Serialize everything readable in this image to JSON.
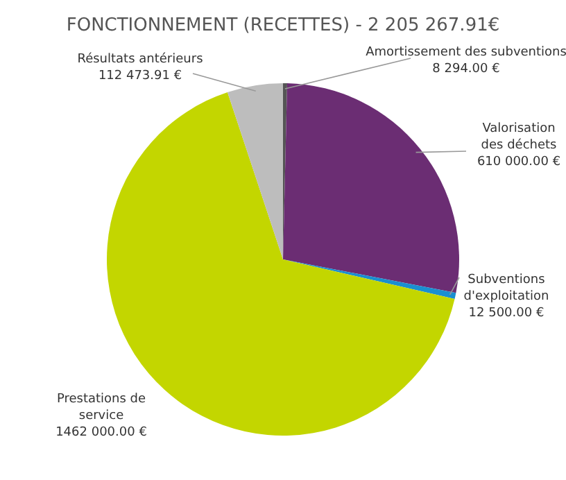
{
  "chart_data": {
    "type": "pie",
    "title": "FONCTIONNEMENT (RECETTES) - 2 205 267.91€",
    "categories": [
      "Amortissement des subventions",
      "Valorisation\ndes déchets",
      "Subventions\nd'exploitation",
      "Prestations de\nservice",
      "Résultats antérieurs"
    ],
    "values": [
      8294,
      610000,
      12500,
      1462000,
      112473.91
    ],
    "value_labels": [
      "8 294.00 €",
      "610 000.00 €",
      "12 500.00 €",
      "1462 000.00 €",
      "112 473.91 €"
    ],
    "colors": [
      "#555555",
      "#6b2d73",
      "#1a8fd0",
      "#c3d600",
      "#bdbdbd"
    ]
  }
}
